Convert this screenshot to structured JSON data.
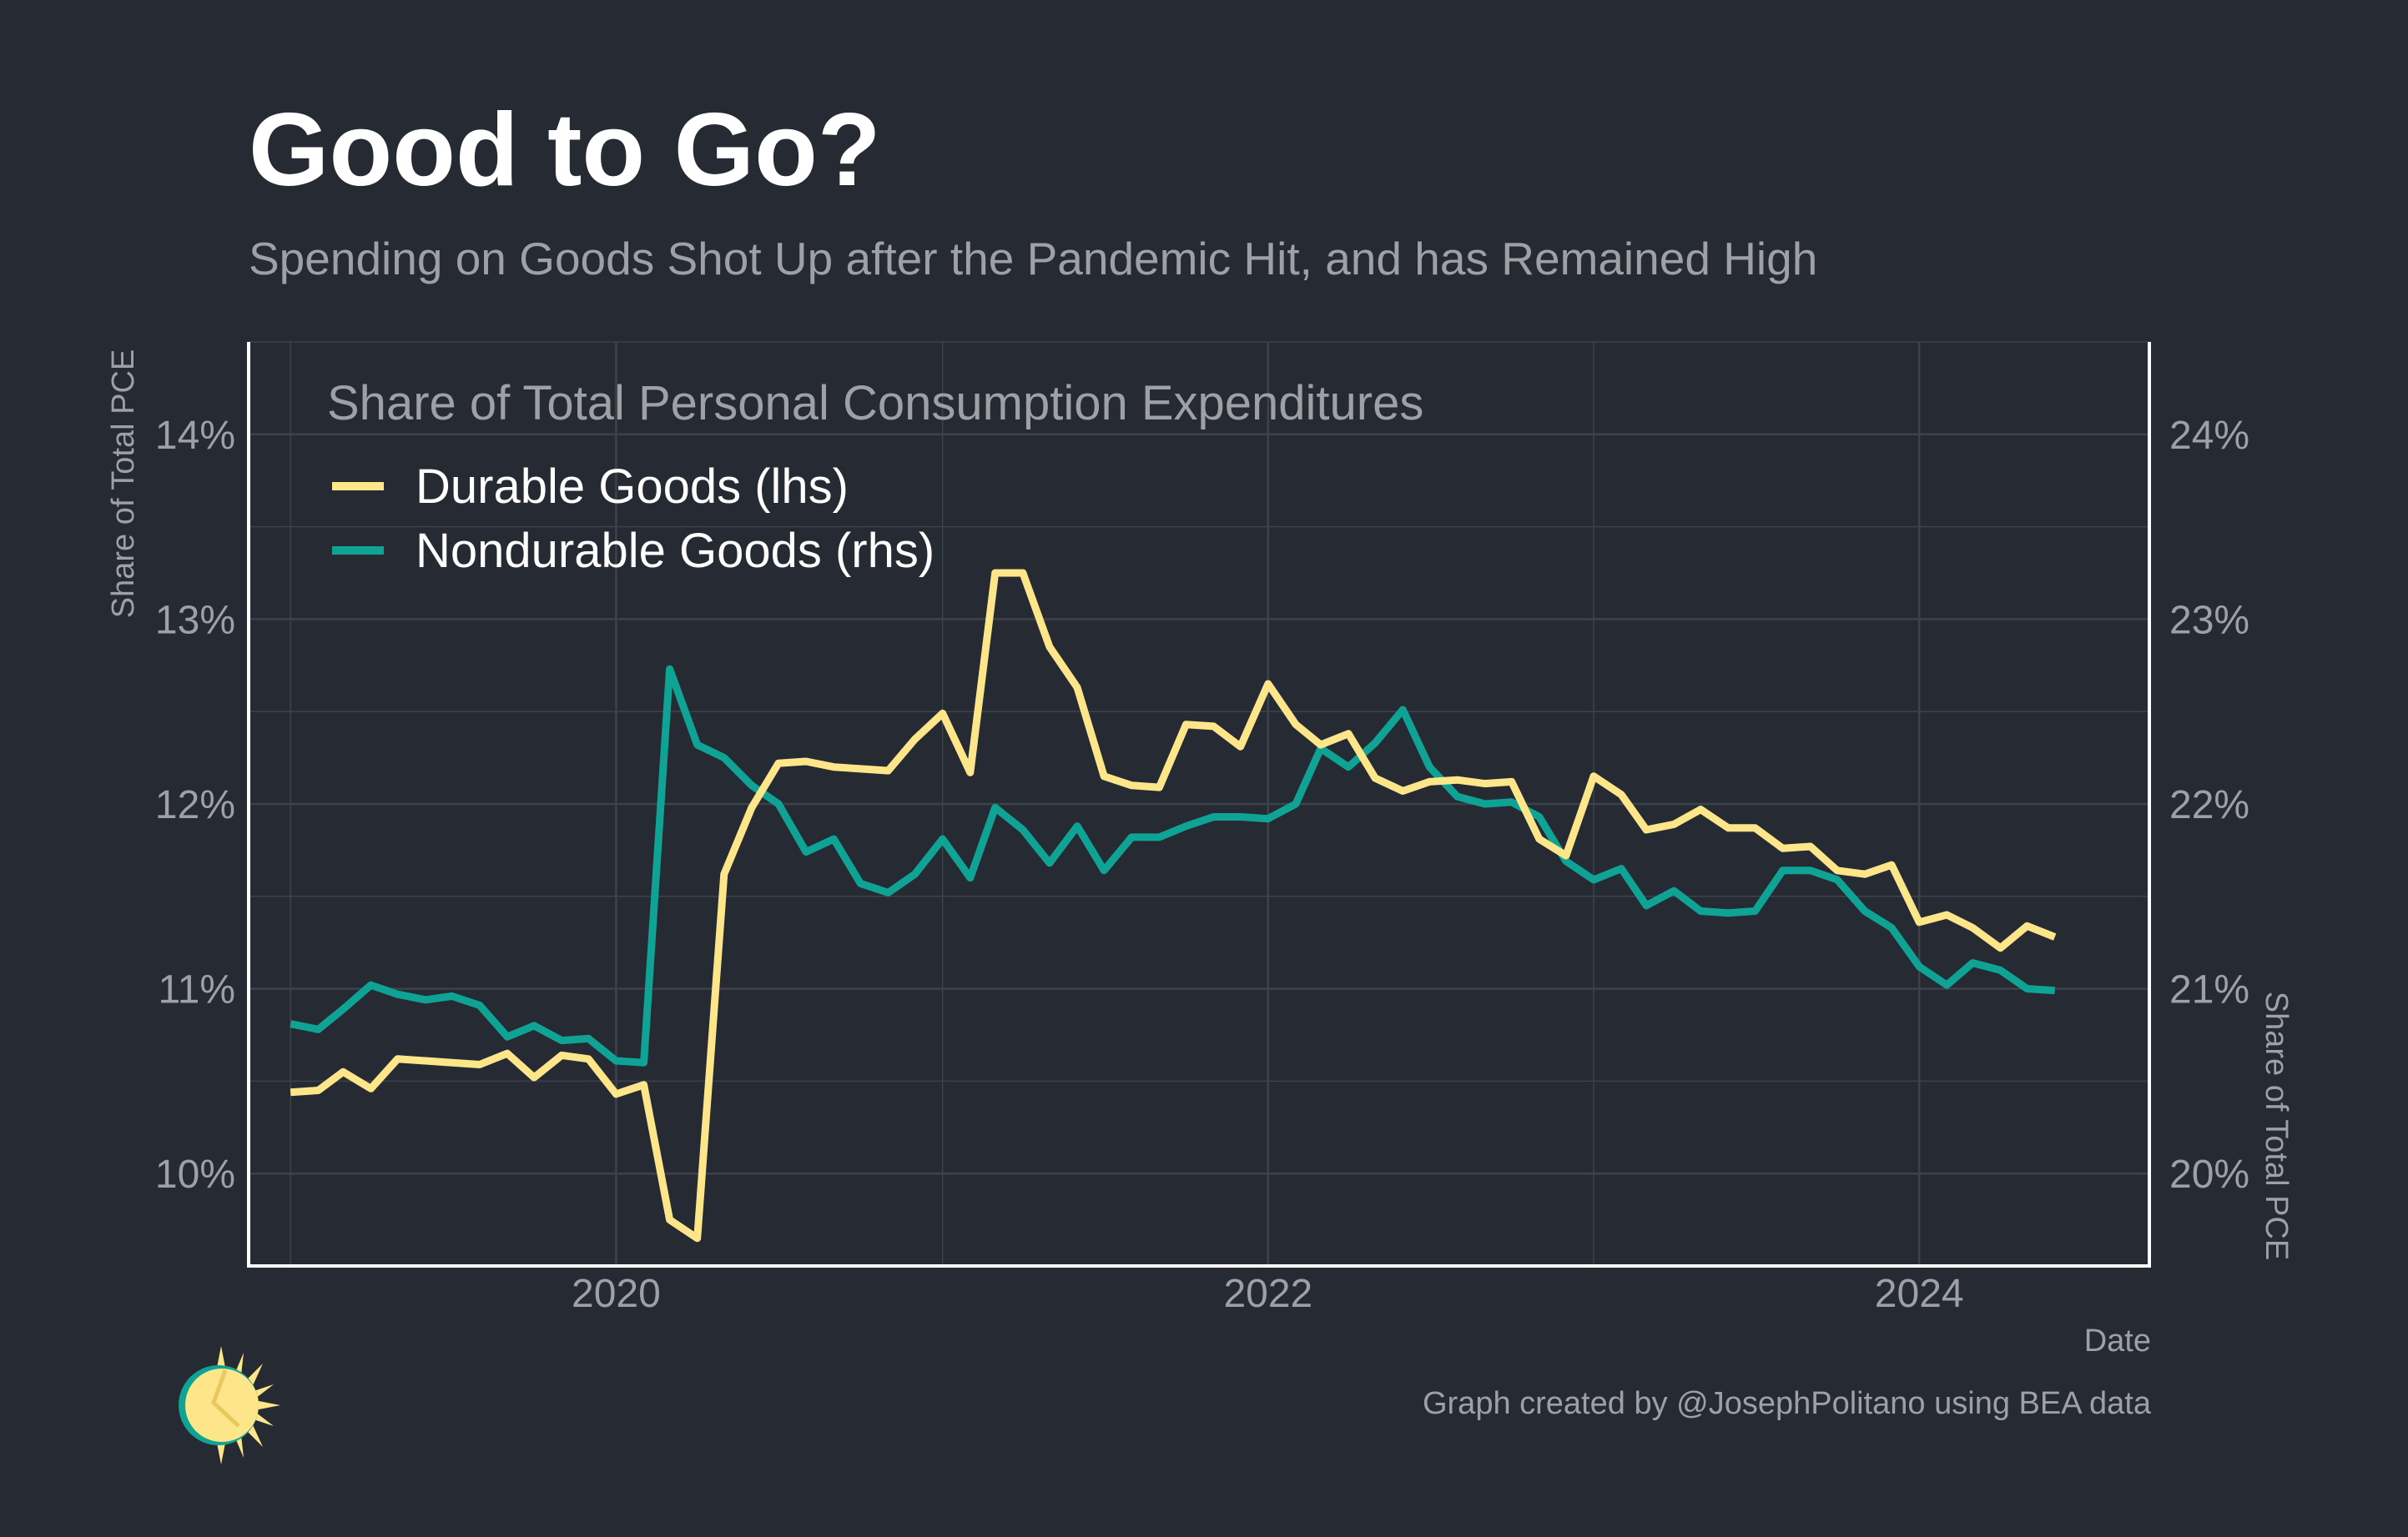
{
  "title": "Good to Go?",
  "subtitle": "Spending on Goods Shot Up after the Pandemic Hit, and has Remained High",
  "credit": "Graph created by @JosephPolitano using BEA data",
  "colors": {
    "background": "#252a33",
    "durable": "#fde68a",
    "nondurable": "#0fa396",
    "text_muted": "#9ea0a6",
    "grid": "#3d424b",
    "axis": "#ffffff"
  },
  "chart_data": {
    "type": "line",
    "legend_title": "Share of Total Personal Consumption Expenditures",
    "legend_position": "top-left",
    "xlabel": "Date",
    "ylabel_left": "Share of Total PCE",
    "ylabel_right": "Share of Total PCE",
    "x_ticks": [
      "2020",
      "2022",
      "2024"
    ],
    "y_left_ticks": [
      "10%",
      "11%",
      "12%",
      "13%",
      "14%"
    ],
    "y_right_ticks": [
      "20%",
      "21%",
      "22%",
      "23%",
      "24%"
    ],
    "ylim_left": [
      9.5,
      14.5
    ],
    "ylim_right": [
      19.5,
      24.5
    ],
    "xlim": [
      "2018-11-15",
      "2024-09-15"
    ],
    "grid": true,
    "x": [
      "2019-01",
      "2019-02",
      "2019-03",
      "2019-04",
      "2019-05",
      "2019-06",
      "2019-07",
      "2019-08",
      "2019-09",
      "2019-10",
      "2019-11",
      "2019-12",
      "2020-01",
      "2020-02",
      "2020-03",
      "2020-04",
      "2020-05",
      "2020-06",
      "2020-07",
      "2020-08",
      "2020-09",
      "2020-10",
      "2020-11",
      "2020-12",
      "2021-01",
      "2021-02",
      "2021-03",
      "2021-04",
      "2021-05",
      "2021-06",
      "2021-07",
      "2021-08",
      "2021-09",
      "2021-10",
      "2021-11",
      "2021-12",
      "2022-01",
      "2022-02",
      "2022-03",
      "2022-04",
      "2022-05",
      "2022-06",
      "2022-07",
      "2022-08",
      "2022-09",
      "2022-10",
      "2022-11",
      "2022-12",
      "2023-01",
      "2023-02",
      "2023-03",
      "2023-04",
      "2023-05",
      "2023-06",
      "2023-07",
      "2023-08",
      "2023-09",
      "2023-10",
      "2023-11",
      "2023-12",
      "2024-01",
      "2024-02",
      "2024-03",
      "2024-04",
      "2024-05",
      "2024-06"
    ],
    "series": [
      {
        "name": "Durable Goods (lhs)",
        "axis": "left",
        "color": "#fde68a",
        "values": [
          10.44,
          10.45,
          10.55,
          10.46,
          10.62,
          10.61,
          10.6,
          10.59,
          10.65,
          10.52,
          10.64,
          10.62,
          10.43,
          10.48,
          9.75,
          9.65,
          11.62,
          11.98,
          12.22,
          12.23,
          12.2,
          12.19,
          12.18,
          12.35,
          12.49,
          12.17,
          13.25,
          13.25,
          12.85,
          12.63,
          12.15,
          12.1,
          12.09,
          12.43,
          12.42,
          12.31,
          12.65,
          12.43,
          12.32,
          12.38,
          12.14,
          12.07,
          12.12,
          12.13,
          12.11,
          12.12,
          11.81,
          11.72,
          12.15,
          12.05,
          11.86,
          11.89,
          11.97,
          11.87,
          11.87,
          11.76,
          11.77,
          11.64,
          11.62,
          11.67,
          11.36,
          11.4,
          11.33,
          11.22,
          11.34,
          11.28
        ]
      },
      {
        "name": "Nondurable Goods (rhs)",
        "axis": "right",
        "color": "#0fa396",
        "values": [
          20.81,
          20.78,
          20.89,
          21.02,
          20.97,
          20.94,
          20.96,
          20.91,
          20.74,
          20.8,
          20.72,
          20.73,
          20.61,
          20.6,
          22.73,
          22.32,
          22.25,
          22.1,
          22.0,
          21.74,
          21.81,
          21.57,
          21.52,
          21.62,
          21.81,
          21.6,
          21.98,
          21.86,
          21.68,
          21.88,
          21.64,
          21.82,
          21.82,
          21.88,
          21.93,
          21.93,
          21.92,
          22.0,
          22.3,
          22.2,
          22.33,
          22.51,
          22.2,
          22.04,
          22.0,
          22.01,
          21.93,
          21.69,
          21.59,
          21.65,
          21.45,
          21.53,
          21.42,
          21.41,
          21.42,
          21.64,
          21.64,
          21.59,
          21.42,
          21.33,
          21.12,
          21.02,
          21.14,
          21.1,
          21.0,
          20.99
        ]
      }
    ]
  }
}
